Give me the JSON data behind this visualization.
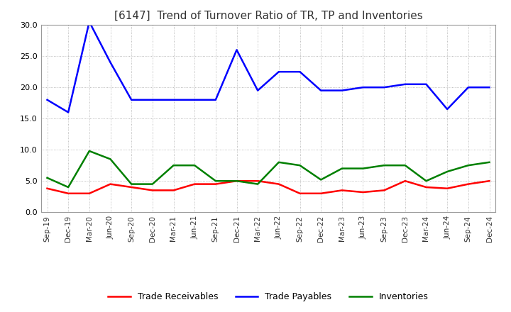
{
  "title": "[6147]  Trend of Turnover Ratio of TR, TP and Inventories",
  "title_fontsize": 11,
  "xlabels": [
    "Sep-19",
    "Dec-19",
    "Mar-20",
    "Jun-20",
    "Sep-20",
    "Dec-20",
    "Mar-21",
    "Jun-21",
    "Sep-21",
    "Dec-21",
    "Mar-22",
    "Jun-22",
    "Sep-22",
    "Dec-22",
    "Mar-23",
    "Jun-23",
    "Sep-23",
    "Dec-23",
    "Mar-24",
    "Jun-24",
    "Sep-24",
    "Dec-24"
  ],
  "trade_receivables": [
    3.8,
    3.0,
    3.0,
    4.5,
    4.0,
    3.5,
    3.5,
    4.5,
    4.5,
    5.0,
    5.0,
    4.5,
    3.0,
    3.0,
    3.5,
    3.2,
    3.5,
    5.0,
    4.0,
    3.8,
    4.5,
    5.0
  ],
  "trade_payables": [
    18.0,
    16.0,
    30.5,
    24.0,
    18.0,
    18.0,
    18.0,
    18.0,
    18.0,
    26.0,
    19.5,
    22.5,
    22.5,
    19.5,
    19.5,
    20.0,
    20.0,
    20.5,
    20.5,
    16.5,
    20.0,
    20.0
  ],
  "inventories": [
    5.5,
    4.0,
    9.8,
    8.5,
    4.5,
    4.5,
    7.5,
    7.5,
    5.0,
    5.0,
    4.5,
    8.0,
    7.5,
    5.2,
    7.0,
    7.0,
    7.5,
    7.5,
    5.0,
    6.5,
    7.5,
    8.0
  ],
  "tr_color": "#ff0000",
  "tp_color": "#0000ff",
  "inv_color": "#008000",
  "ylim": [
    0,
    30.0
  ],
  "yticks": [
    0.0,
    5.0,
    10.0,
    15.0,
    20.0,
    25.0,
    30.0
  ],
  "legend_labels": [
    "Trade Receivables",
    "Trade Payables",
    "Inventories"
  ],
  "background_color": "#ffffff",
  "grid_color": "#aaaaaa"
}
